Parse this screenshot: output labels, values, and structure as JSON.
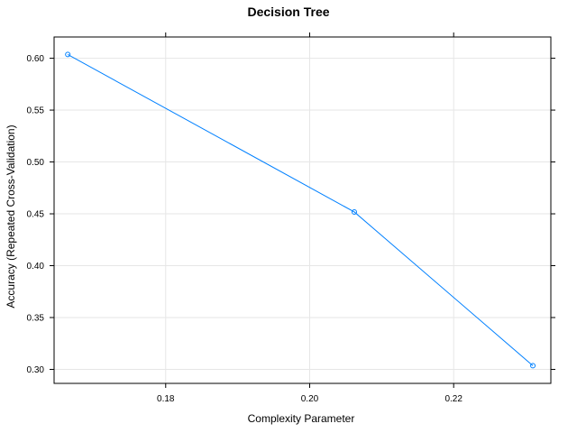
{
  "chart_data": {
    "type": "line",
    "title": "Decision Tree",
    "xlabel": "Complexity Parameter",
    "ylabel": "Accuracy (Repeated Cross-Validation)",
    "xlim": [
      0.1645,
      0.2335
    ],
    "ylim": [
      0.2865,
      0.6205
    ],
    "x_ticks": [
      {
        "value": 0.18,
        "label": "0.18"
      },
      {
        "value": 0.2,
        "label": "0.20"
      },
      {
        "value": 0.22,
        "label": "0.22"
      }
    ],
    "y_ticks": [
      {
        "value": 0.3,
        "label": "0.30"
      },
      {
        "value": 0.35,
        "label": "0.35"
      },
      {
        "value": 0.4,
        "label": "0.40"
      },
      {
        "value": 0.45,
        "label": "0.45"
      },
      {
        "value": 0.5,
        "label": "0.50"
      },
      {
        "value": 0.55,
        "label": "0.55"
      },
      {
        "value": 0.6,
        "label": "0.60"
      }
    ],
    "grid": true,
    "series": [
      {
        "color": "#0080ff",
        "marker": "open-circle",
        "points": [
          {
            "x": 0.1664,
            "y": 0.6036
          },
          {
            "x": 0.2062,
            "y": 0.4518
          },
          {
            "x": 0.231,
            "y": 0.3036
          }
        ]
      }
    ]
  }
}
